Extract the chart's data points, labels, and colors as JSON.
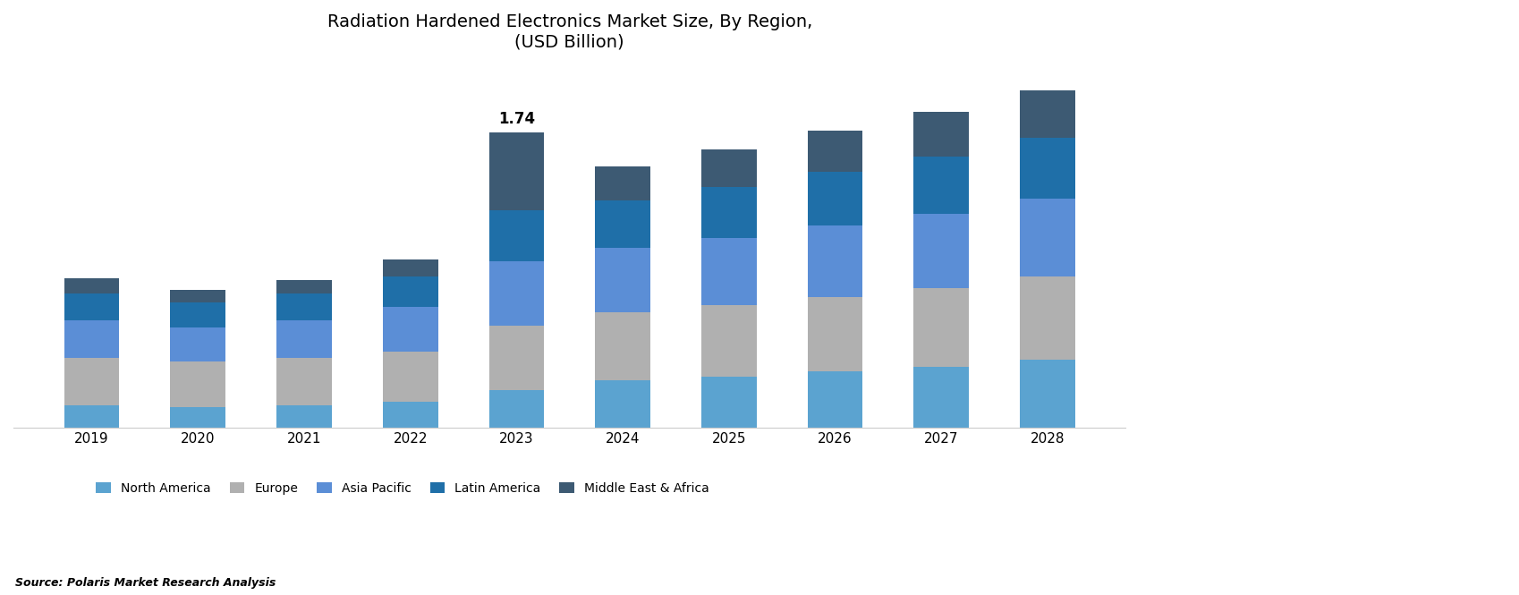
{
  "title": "Radiation Hardened Electronics Market Size, By Region,\n(USD Billion)",
  "years": [
    2019,
    2020,
    2021,
    2022,
    2023,
    2024,
    2025,
    2026,
    2027,
    2028
  ],
  "north_america": [
    0.13,
    0.12,
    0.13,
    0.15,
    0.22,
    0.28,
    0.3,
    0.33,
    0.36,
    0.4
  ],
  "europe": [
    0.28,
    0.27,
    0.28,
    0.3,
    0.38,
    0.4,
    0.42,
    0.44,
    0.46,
    0.49
  ],
  "asia_pacific": [
    0.22,
    0.2,
    0.22,
    0.26,
    0.38,
    0.38,
    0.4,
    0.42,
    0.44,
    0.46
  ],
  "latin_america": [
    0.16,
    0.15,
    0.16,
    0.18,
    0.3,
    0.28,
    0.3,
    0.32,
    0.34,
    0.36
  ],
  "other": [
    0.09,
    0.07,
    0.08,
    0.1,
    0.46,
    0.2,
    0.22,
    0.24,
    0.26,
    0.28
  ],
  "annotation_year": 2023,
  "annotation_value": "1.74",
  "colors": {
    "north_america": "#5BA3D0",
    "europe": "#B0B0B0",
    "asia_pacific": "#5B8ED6",
    "latin_america": "#1F6FA8",
    "other": "#3D5A73"
  },
  "legend_labels": [
    "North America",
    "Europe",
    "Asia Pacific",
    "Latin America",
    "Middle East & Africa"
  ],
  "source_text": "Source: Polaris Market Research Analysis",
  "title_fontsize": 14,
  "axis_fontsize": 11,
  "legend_fontsize": 10,
  "source_fontsize": 9,
  "ylim": [
    0,
    2.1
  ],
  "background_color": "#FFFFFF",
  "bar_width": 0.52
}
